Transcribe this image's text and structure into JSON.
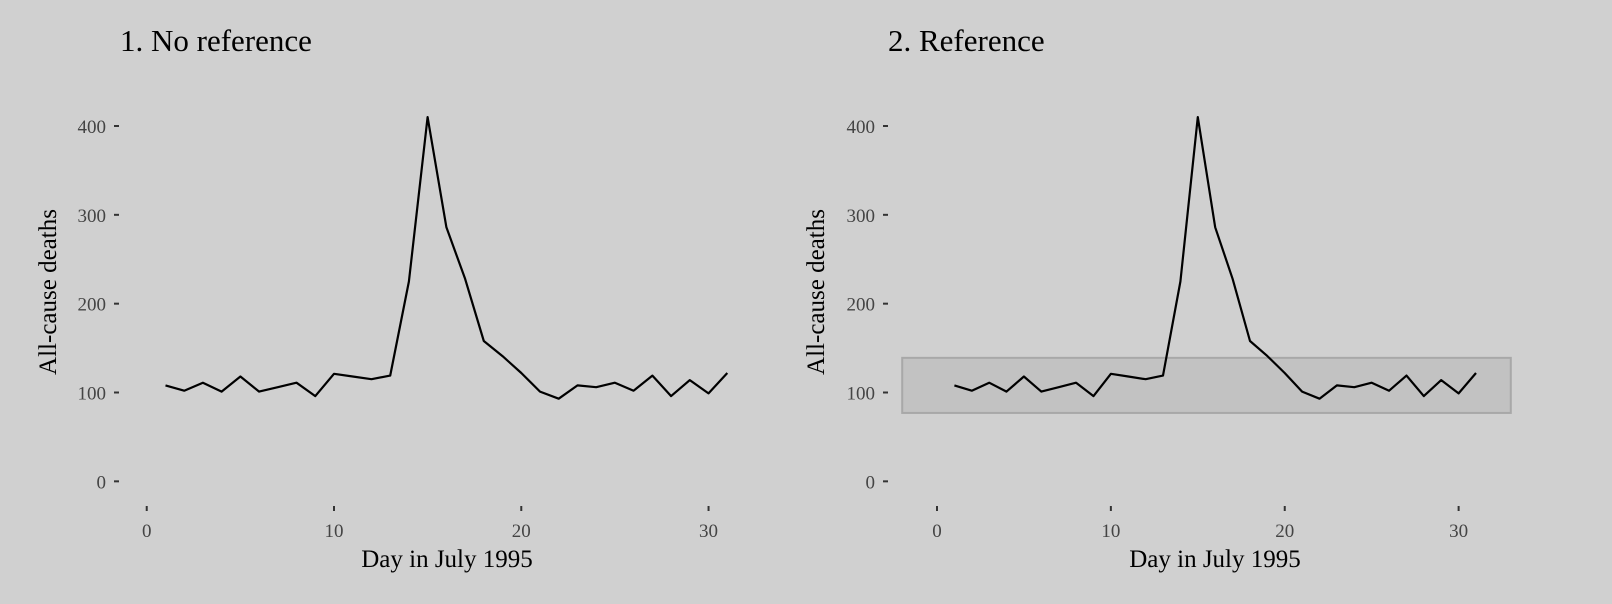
{
  "chart_data": [
    {
      "type": "line",
      "title": "1. No reference",
      "xlabel": "Day in July 1995",
      "ylabel": "All-cause deaths",
      "xlim": [
        -1,
        32
      ],
      "ylim": [
        -12,
        418
      ],
      "x_ticks": [
        0,
        10,
        20,
        30
      ],
      "y_ticks": [
        0,
        100,
        200,
        300,
        400
      ],
      "grid": false,
      "series": [
        {
          "x": [
            1,
            2,
            3,
            4,
            5,
            6,
            7,
            8,
            9,
            10,
            11,
            12,
            13,
            14,
            15,
            16,
            17,
            18,
            19,
            20,
            21,
            22,
            23,
            24,
            25,
            26,
            27,
            28,
            29,
            30,
            31
          ],
          "y": [
            108,
            102,
            111,
            101,
            118,
            101,
            106,
            111,
            96,
            121,
            118,
            115,
            119,
            225,
            410,
            286,
            228,
            158,
            141,
            122,
            101,
            93,
            108,
            106,
            111,
            102,
            119,
            96,
            114,
            99,
            122
          ]
        }
      ]
    },
    {
      "type": "line",
      "title": "2. Reference",
      "xlabel": "Day in July 1995",
      "ylabel": "All-cause deaths",
      "xlim": [
        -2.3,
        33.3
      ],
      "ylim": [
        -12,
        418
      ],
      "x_ticks": [
        0,
        10,
        20,
        30
      ],
      "y_ticks": [
        0,
        100,
        200,
        300,
        400
      ],
      "grid": false,
      "reference_band": {
        "x": [
          -2,
          33
        ],
        "y": [
          77,
          139
        ]
      },
      "series": [
        {
          "x": [
            1,
            2,
            3,
            4,
            5,
            6,
            7,
            8,
            9,
            10,
            11,
            12,
            13,
            14,
            15,
            16,
            17,
            18,
            19,
            20,
            21,
            22,
            23,
            24,
            25,
            26,
            27,
            28,
            29,
            30,
            31
          ],
          "y": [
            108,
            102,
            111,
            101,
            118,
            101,
            106,
            111,
            96,
            121,
            118,
            115,
            119,
            225,
            410,
            286,
            228,
            158,
            141,
            122,
            101,
            93,
            108,
            106,
            111,
            102,
            119,
            96,
            114,
            99,
            122
          ]
        }
      ]
    }
  ]
}
